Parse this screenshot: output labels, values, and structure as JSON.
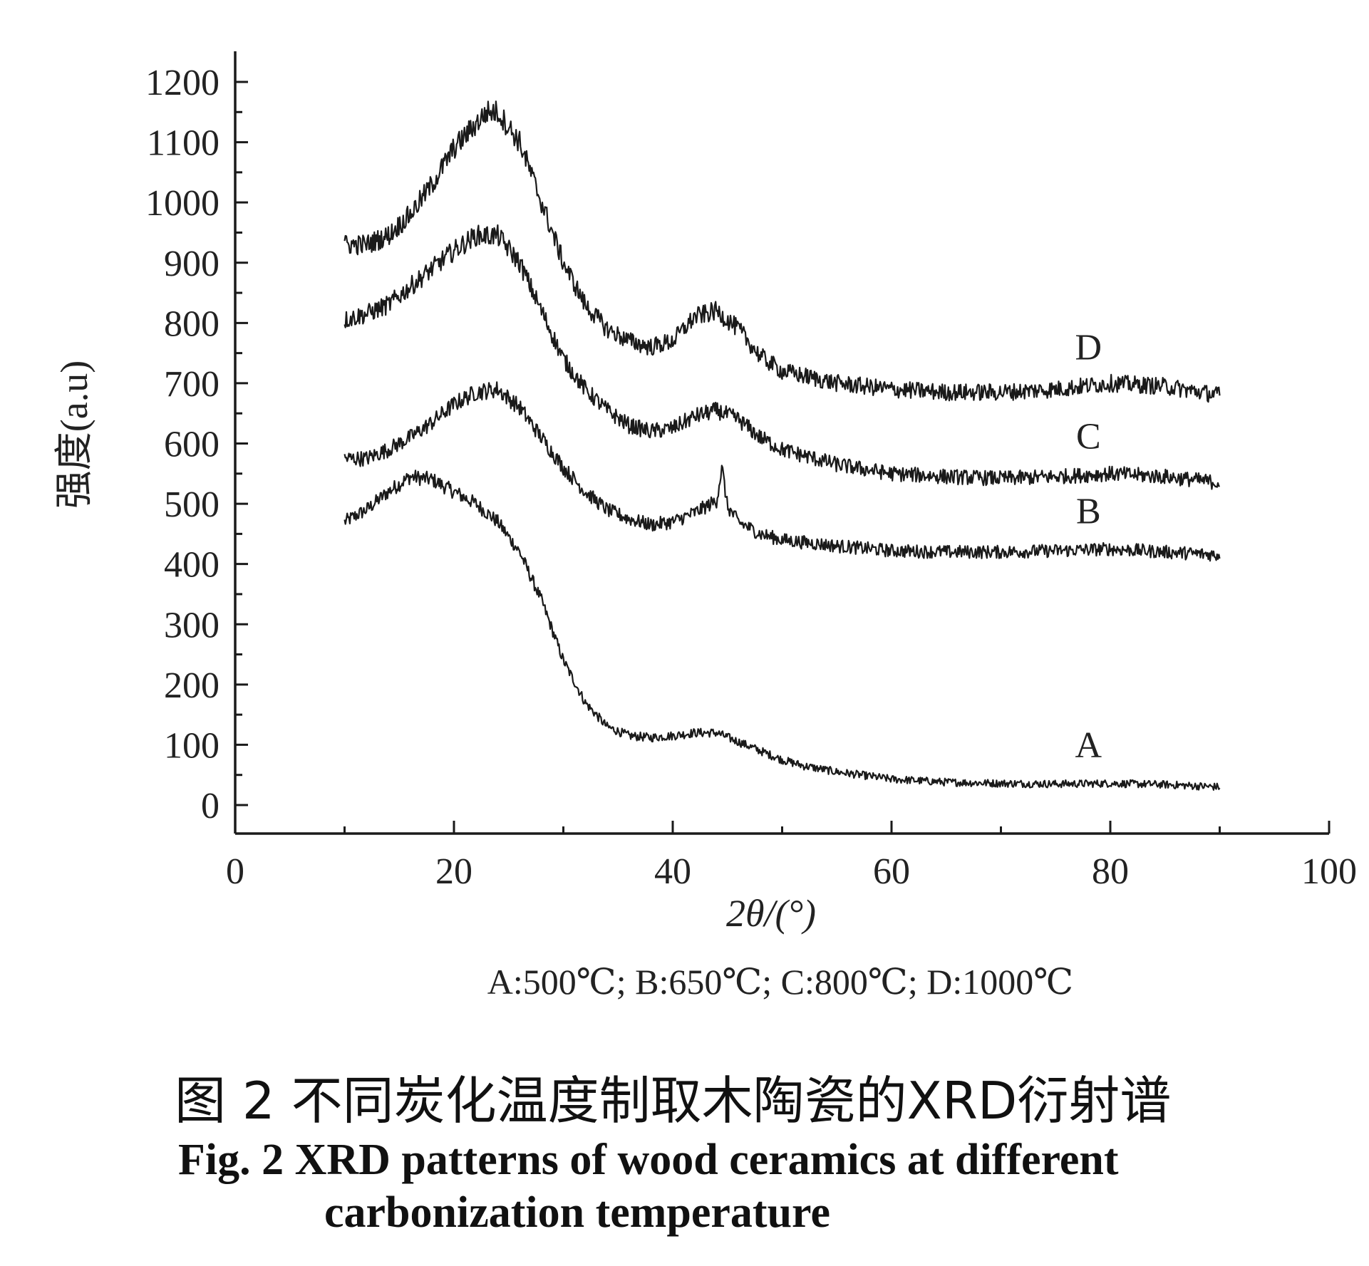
{
  "chart_data": {
    "type": "line",
    "xlabel": "2θ/(°)",
    "ylabel": "强度(a.u)",
    "xlim": [
      0,
      100
    ],
    "ylim": [
      0,
      1200
    ],
    "x_ticks": [
      "0",
      "20",
      "40",
      "60",
      "80",
      "100"
    ],
    "y_ticks": [
      "0",
      "100",
      "200",
      "300",
      "400",
      "500",
      "600",
      "700",
      "800",
      "900",
      "1000",
      "1100",
      "1200"
    ],
    "grid": false,
    "series": [
      {
        "name": "A",
        "x": [
          10,
          12,
          14,
          16,
          18,
          20,
          22,
          24,
          26,
          28,
          30,
          32,
          34,
          36,
          38,
          40,
          42,
          44,
          46,
          48,
          50,
          52,
          55,
          58,
          60,
          65,
          70,
          75,
          80,
          85,
          90
        ],
        "y": [
          470,
          490,
          520,
          545,
          540,
          520,
          500,
          470,
          420,
          340,
          240,
          170,
          130,
          115,
          112,
          115,
          120,
          120,
          105,
          90,
          75,
          65,
          55,
          48,
          43,
          38,
          36,
          35,
          36,
          34,
          30
        ]
      },
      {
        "name": "B",
        "x": [
          10,
          12,
          14,
          16,
          18,
          20,
          22,
          24,
          26,
          28,
          30,
          32,
          34,
          36,
          38,
          40,
          42,
          43,
          44,
          44.5,
          45,
          46,
          48,
          50,
          55,
          60,
          65,
          70,
          75,
          80,
          85,
          90
        ],
        "y": [
          575,
          575,
          590,
          610,
          635,
          665,
          685,
          690,
          660,
          610,
          560,
          520,
          490,
          475,
          465,
          470,
          485,
          495,
          505,
          560,
          495,
          470,
          450,
          440,
          430,
          422,
          420,
          420,
          422,
          425,
          420,
          415
        ]
      },
      {
        "name": "C",
        "x": [
          10,
          12,
          14,
          16,
          18,
          20,
          22,
          24,
          26,
          28,
          30,
          32,
          34,
          36,
          38,
          40,
          42,
          44,
          46,
          48,
          50,
          55,
          60,
          65,
          70,
          75,
          80,
          85,
          90
        ],
        "y": [
          805,
          815,
          830,
          860,
          890,
          920,
          945,
          945,
          900,
          820,
          740,
          690,
          655,
          630,
          620,
          625,
          645,
          655,
          640,
          610,
          590,
          565,
          550,
          545,
          542,
          545,
          550,
          545,
          535
        ]
      },
      {
        "name": "D",
        "x": [
          10,
          12,
          14,
          16,
          18,
          20,
          22,
          23,
          24,
          26,
          28,
          30,
          32,
          34,
          36,
          38,
          40,
          42,
          44,
          46,
          48,
          50,
          55,
          60,
          65,
          70,
          75,
          80,
          85,
          90
        ],
        "y": [
          930,
          930,
          945,
          980,
          1030,
          1090,
          1130,
          1150,
          1150,
          1100,
          1000,
          900,
          830,
          790,
          770,
          760,
          770,
          810,
          820,
          790,
          745,
          720,
          700,
          690,
          685,
          685,
          690,
          700,
          695,
          680
        ]
      }
    ],
    "annotations": [
      "D",
      "C",
      "B",
      "A"
    ],
    "legend_note": "A:500℃; B:650℃; C:800℃; D:1000℃"
  },
  "caption": {
    "zh": "图 2   不同炭化温度制取木陶瓷的XRD衍射谱",
    "en_line1": "Fig. 2   XRD patterns of wood ceramics at different",
    "en_line2": "carbonization temperature"
  }
}
